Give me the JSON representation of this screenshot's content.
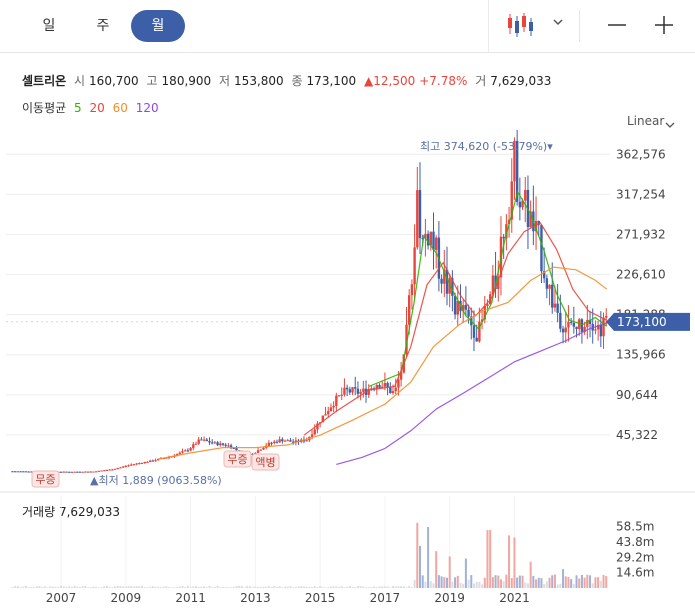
{
  "tabs": [
    {
      "label": "일",
      "active": false
    },
    {
      "label": "주",
      "active": false
    },
    {
      "label": "월",
      "active": true
    }
  ],
  "toolbar": {
    "chart_type_icon": "candlestick-icon",
    "dropdown_icon": "chevron-down-icon",
    "zoom_out_icon": "minus-icon",
    "zoom_in_icon": "plus-icon"
  },
  "stock": {
    "name": "셀트리온",
    "open_label": "시",
    "open": "160,700",
    "high_label": "고",
    "high": "180,900",
    "low_label": "저",
    "low": "153,800",
    "close_label": "종",
    "close": "173,100",
    "change": "▲12,500",
    "change_pct": "+7.78%",
    "volume_label": "거",
    "volume": "7,629,033"
  },
  "moving_average": {
    "label": "이동평균",
    "periods": [
      {
        "value": "5",
        "color": "#2db400"
      },
      {
        "value": "20",
        "color": "#e8453c"
      },
      {
        "value": "60",
        "color": "#f28e2b"
      },
      {
        "value": "120",
        "color": "#8f47e8"
      }
    ]
  },
  "scale_mode": "Linear",
  "colors": {
    "up": "#e8453c",
    "down": "#3d5fa8",
    "accent": "#3d5fa8",
    "grid": "#ededed",
    "volume": "#d9dde6"
  },
  "chart_data": {
    "type": "candlestick",
    "x_ticks": [
      "2007",
      "2009",
      "2011",
      "2013",
      "2015",
      "2017",
      "2019",
      "2021"
    ],
    "y_ticks": [
      45322,
      90644,
      135966,
      181288,
      226610,
      271932,
      317254,
      362576
    ],
    "y_tick_labels": [
      "45,322",
      "90,644",
      "135,966",
      "181,288",
      "226,610",
      "271,932",
      "317,254",
      "362,576"
    ],
    "ylim": [
      0,
      390000
    ],
    "last_price": 173100,
    "last_price_label": "173,100",
    "annotations": {
      "high_label": "최고 374,620 (-53.79%)▾",
      "low_label": "▲최저 1,889 (9063.58%)",
      "events": [
        "무증",
        "무증",
        "액병"
      ]
    },
    "price_path": [
      [
        2005.5,
        4200
      ],
      [
        2006.5,
        3800
      ],
      [
        2007.3,
        3600
      ],
      [
        2008.0,
        3900
      ],
      [
        2008.6,
        6500
      ],
      [
        2009.2,
        12000
      ],
      [
        2009.8,
        16000
      ],
      [
        2010.4,
        21000
      ],
      [
        2010.9,
        28000
      ],
      [
        2011.3,
        40000
      ],
      [
        2011.7,
        36000
      ],
      [
        2012.2,
        33000
      ],
      [
        2012.7,
        22000
      ],
      [
        2013.0,
        26000
      ],
      [
        2013.4,
        35000
      ],
      [
        2013.8,
        40000
      ],
      [
        2014.2,
        37000
      ],
      [
        2014.6,
        40000
      ],
      [
        2015.0,
        62000
      ],
      [
        2015.4,
        82000
      ],
      [
        2015.8,
        95000
      ],
      [
        2016.3,
        93000
      ],
      [
        2016.8,
        105000
      ],
      [
        2017.3,
        92000
      ],
      [
        2017.6,
        130000
      ],
      [
        2017.8,
        215000
      ],
      [
        2018.0,
        320000
      ],
      [
        2018.15,
        260000
      ],
      [
        2018.35,
        280000
      ],
      [
        2018.6,
        245000
      ],
      [
        2018.9,
        215000
      ],
      [
        2019.2,
        190000
      ],
      [
        2019.6,
        175000
      ],
      [
        2019.9,
        160000
      ],
      [
        2020.1,
        185000
      ],
      [
        2020.4,
        215000
      ],
      [
        2020.7,
        290000
      ],
      [
        2021.0,
        350000
      ],
      [
        2021.2,
        320000
      ],
      [
        2021.5,
        285000
      ],
      [
        2021.8,
        255000
      ],
      [
        2022.1,
        205000
      ],
      [
        2022.4,
        180000
      ],
      [
        2022.7,
        165000
      ],
      [
        2023.0,
        168000
      ],
      [
        2023.3,
        185000
      ],
      [
        2023.6,
        165000
      ],
      [
        2023.85,
        173100
      ]
    ],
    "ma5": [
      [
        2016.5,
        100000
      ],
      [
        2017.5,
        115000
      ],
      [
        2017.9,
        195000
      ],
      [
        2018.2,
        270000
      ],
      [
        2018.6,
        250000
      ],
      [
        2019.0,
        215000
      ],
      [
        2019.5,
        180000
      ],
      [
        2019.9,
        165000
      ],
      [
        2020.3,
        195000
      ],
      [
        2020.7,
        265000
      ],
      [
        2021.1,
        320000
      ],
      [
        2021.5,
        295000
      ],
      [
        2021.9,
        255000
      ],
      [
        2022.3,
        205000
      ],
      [
        2022.7,
        175000
      ],
      [
        2023.1,
        170000
      ],
      [
        2023.5,
        178000
      ],
      [
        2023.85,
        168000
      ]
    ],
    "ma20": [
      [
        2014.5,
        45000
      ],
      [
        2015.5,
        72000
      ],
      [
        2016.5,
        96000
      ],
      [
        2017.3,
        100000
      ],
      [
        2017.8,
        145000
      ],
      [
        2018.3,
        215000
      ],
      [
        2018.8,
        240000
      ],
      [
        2019.3,
        205000
      ],
      [
        2019.8,
        180000
      ],
      [
        2020.3,
        200000
      ],
      [
        2020.8,
        250000
      ],
      [
        2021.3,
        275000
      ],
      [
        2021.8,
        285000
      ],
      [
        2022.3,
        255000
      ],
      [
        2022.8,
        210000
      ],
      [
        2023.3,
        185000
      ],
      [
        2023.85,
        175000
      ]
    ],
    "ma60": [
      [
        2010.0,
        18000
      ],
      [
        2011.0,
        25000
      ],
      [
        2012.0,
        31000
      ],
      [
        2013.0,
        31000
      ],
      [
        2014.0,
        34000
      ],
      [
        2015.0,
        45000
      ],
      [
        2016.0,
        62000
      ],
      [
        2017.0,
        80000
      ],
      [
        2017.8,
        105000
      ],
      [
        2018.5,
        145000
      ],
      [
        2019.3,
        170000
      ],
      [
        2020.0,
        185000
      ],
      [
        2020.8,
        195000
      ],
      [
        2021.5,
        220000
      ],
      [
        2022.2,
        235000
      ],
      [
        2022.9,
        232000
      ],
      [
        2023.5,
        220000
      ],
      [
        2023.85,
        210000
      ]
    ],
    "ma120": [
      [
        2015.5,
        12000
      ],
      [
        2016.3,
        20000
      ],
      [
        2017.0,
        30000
      ],
      [
        2017.8,
        50000
      ],
      [
        2018.6,
        75000
      ],
      [
        2019.4,
        92000
      ],
      [
        2020.2,
        110000
      ],
      [
        2021.0,
        128000
      ],
      [
        2021.8,
        140000
      ],
      [
        2022.6,
        152000
      ],
      [
        2023.3,
        165000
      ],
      [
        2023.85,
        172000
      ]
    ],
    "volume": {
      "label": "거래량",
      "last": "7,629,033",
      "y_tick_labels": [
        "58.5m",
        "43.8m",
        "29.2m",
        "14.6m"
      ],
      "y_ticks": [
        58.5,
        43.8,
        29.2,
        14.6
      ],
      "ylim": [
        0,
        76
      ],
      "spikes": [
        [
          2018.0,
          62
        ],
        [
          2018.1,
          40
        ],
        [
          2018.3,
          58
        ],
        [
          2018.6,
          35
        ],
        [
          2019.0,
          30
        ],
        [
          2019.5,
          28
        ],
        [
          2020.2,
          55
        ],
        [
          2020.8,
          50
        ],
        [
          2021.0,
          48
        ],
        [
          2021.5,
          25
        ],
        [
          2022.5,
          18
        ],
        [
          2023.3,
          12
        ],
        [
          2023.85,
          8
        ]
      ]
    }
  }
}
